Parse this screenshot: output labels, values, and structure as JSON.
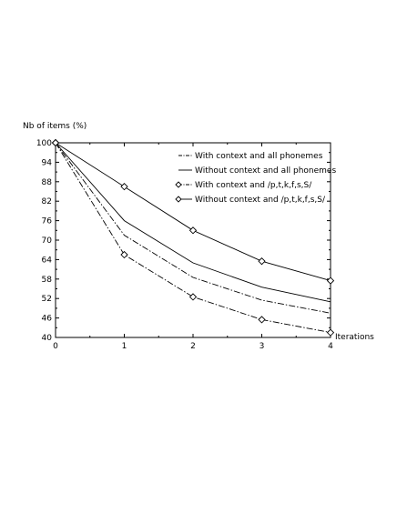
{
  "chart_data": {
    "type": "line",
    "ylabel": "Nb of items (%)",
    "xlabel": "Iterations",
    "xlim": [
      0,
      4
    ],
    "ylim": [
      40,
      100
    ],
    "x_ticks": [
      0,
      1,
      2,
      3,
      4
    ],
    "y_ticks": [
      40,
      46,
      52,
      58,
      64,
      70,
      76,
      82,
      88,
      94,
      100
    ],
    "grid": false,
    "legend_position": "top-right",
    "series": [
      {
        "name": "With context and all phonemes",
        "line_style": "dash-dot",
        "marker": "none",
        "x": [
          0,
          1,
          2,
          3,
          4
        ],
        "values": [
          100,
          71.5,
          58.5,
          51.5,
          47.5
        ]
      },
      {
        "name": "Without context and all phonemes",
        "line_style": "solid",
        "marker": "none",
        "x": [
          0,
          1,
          2,
          3,
          4
        ],
        "values": [
          100,
          76,
          63,
          55.5,
          51
        ]
      },
      {
        "name": "With context and /p,t,k,f,s,S/",
        "line_style": "dash-dot",
        "marker": "diamond",
        "x": [
          0,
          1,
          2,
          3,
          4
        ],
        "values": [
          100,
          65.5,
          52.5,
          45.5,
          41.5
        ]
      },
      {
        "name": "Without context and /p,t,k,f,s,S/",
        "line_style": "solid",
        "marker": "diamond",
        "x": [
          0,
          1,
          2,
          3,
          4
        ],
        "values": [
          100,
          86.5,
          73,
          63.5,
          57.5
        ]
      }
    ]
  }
}
